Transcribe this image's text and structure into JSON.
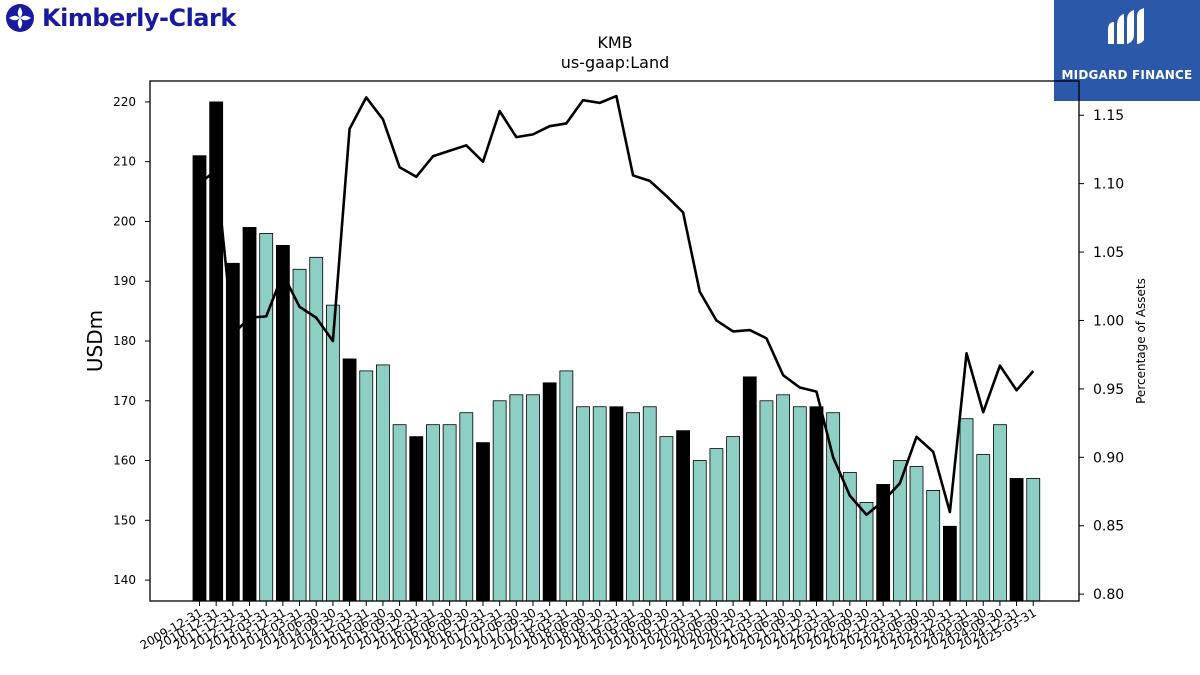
{
  "brand": {
    "company_name": "Kimberly-Clark",
    "company_color": "#1a1aa0",
    "partner_name": "MIDGARD FINANCE",
    "partner_color": "#2b58a8"
  },
  "chart_data": {
    "type": "bar",
    "title": "KMB",
    "subtitle": "us-gaap:Land",
    "ylabel": "USDm",
    "y2label": "Percentage of Assets",
    "ylim": [
      136.5,
      223.5
    ],
    "y2lim": [
      0.795,
      1.175
    ],
    "yticks": [
      140,
      150,
      160,
      170,
      180,
      190,
      200,
      210,
      220
    ],
    "y2ticks": [
      "0.80",
      "0.85",
      "0.90",
      "0.95",
      "1.00",
      "1.05",
      "1.10",
      "1.15"
    ],
    "bar_colors": {
      "annual": "#000000",
      "quarterly": "#8ecfc4"
    },
    "line_color": "#000000",
    "categories": [
      "2009-12-31",
      "2010-12-31",
      "2011-12-31",
      "2012-12-31",
      "2013-03-31",
      "2013-12-31",
      "2014-03-31",
      "2014-06-30",
      "2014-09-30",
      "2014-12-31",
      "2015-03-31",
      "2015-06-30",
      "2015-09-30",
      "2015-12-31",
      "2016-03-31",
      "2016-06-30",
      "2016-09-30",
      "2016-12-31",
      "2017-03-31",
      "2017-06-30",
      "2017-09-30",
      "2017-12-31",
      "2018-03-31",
      "2018-06-30",
      "2018-09-30",
      "2018-12-31",
      "2019-03-31",
      "2019-06-30",
      "2019-09-30",
      "2019-12-31",
      "2020-03-31",
      "2020-06-30",
      "2020-09-30",
      "2020-12-31",
      "2021-03-31",
      "2021-06-30",
      "2021-09-30",
      "2021-12-31",
      "2022-03-31",
      "2022-06-30",
      "2022-09-30",
      "2022-12-31",
      "2023-03-31",
      "2023-06-30",
      "2023-09-30",
      "2023-12-31",
      "2024-03-31",
      "2024-06-30",
      "2024-09-30",
      "2024-12-31",
      "2025-03-31"
    ],
    "period_type": [
      "annual",
      "annual",
      "annual",
      "annual",
      "quarterly",
      "annual",
      "quarterly",
      "quarterly",
      "quarterly",
      "annual",
      "quarterly",
      "quarterly",
      "quarterly",
      "annual",
      "quarterly",
      "quarterly",
      "quarterly",
      "annual",
      "quarterly",
      "quarterly",
      "quarterly",
      "annual",
      "quarterly",
      "quarterly",
      "quarterly",
      "annual",
      "quarterly",
      "quarterly",
      "quarterly",
      "annual",
      "quarterly",
      "quarterly",
      "quarterly",
      "annual",
      "quarterly",
      "quarterly",
      "quarterly",
      "annual",
      "quarterly",
      "quarterly",
      "quarterly",
      "annual",
      "quarterly",
      "quarterly",
      "quarterly",
      "annual",
      "quarterly",
      "quarterly",
      "quarterly",
      "annual",
      "quarterly"
    ],
    "series": [
      {
        "name": "Land",
        "axis": "left",
        "values": [
          211,
          220,
          193,
          199,
          198,
          196,
          192,
          194,
          186,
          177,
          175,
          176,
          166,
          164,
          166,
          166,
          168,
          163,
          170,
          171,
          171,
          173,
          175,
          169,
          169,
          169,
          168,
          169,
          164,
          165,
          160,
          162,
          164,
          174,
          170,
          171,
          169,
          169,
          168,
          158,
          153,
          156,
          160,
          159,
          155,
          149,
          167,
          161,
          166,
          157,
          157
        ]
      },
      {
        "name": "Percentage of Assets",
        "axis": "right",
        "values": [
          1.1,
          1.11,
          0.99,
          1.002,
          1.003,
          1.034,
          1.01,
          1.002,
          0.985,
          1.14,
          1.163,
          1.147,
          1.112,
          1.105,
          1.12,
          1.124,
          1.128,
          1.116,
          1.153,
          1.134,
          1.136,
          1.142,
          1.144,
          1.161,
          1.159,
          1.164,
          1.106,
          1.102,
          1.091,
          1.079,
          1.021,
          1.0,
          0.992,
          0.993,
          0.987,
          0.96,
          0.951,
          0.948,
          0.9,
          0.872,
          0.858,
          0.868,
          0.881,
          0.915,
          0.904,
          0.86,
          0.976,
          0.933,
          0.967,
          0.949,
          0.963
        ]
      }
    ]
  }
}
